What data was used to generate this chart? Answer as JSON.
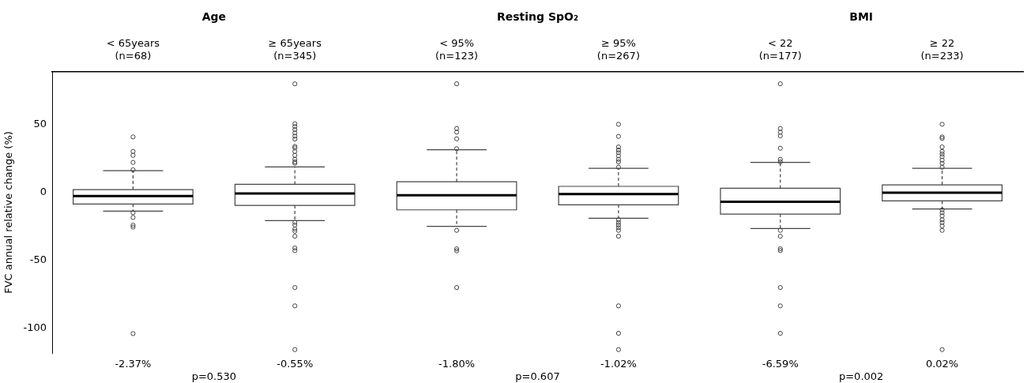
{
  "chart_data": {
    "type": "box",
    "categories": [
      "< 65years\n(n=68)",
      "≥ 65years\n(n=345)",
      "< 95%\n(n=123)",
      "≥ 95%\n(n=267)",
      "< 22\n(n=177)",
      "≥ 22\n(n=233)"
    ],
    "ylabel": "FVC annual relative change (%)",
    "ylim": [
      -118,
      89
    ],
    "yticks": [
      -100,
      -50,
      0,
      50
    ],
    "color": "#444444",
    "marker": "circle",
    "boxes": [
      {
        "low": -13.6,
        "q1": -8.3,
        "median": -2.37,
        "q3": 2.3,
        "high": 16.3,
        "outliers": [
          41.1,
          30.4,
          27.5,
          22.3,
          16.9,
          -14.7,
          -18.2,
          -23.9,
          -25.3,
          -103.7
        ]
      },
      {
        "low": -20.5,
        "q1": -9.3,
        "median": -0.55,
        "q3": 6.2,
        "high": 19.0,
        "outliers": [
          80.2,
          50.8,
          48.8,
          46.5,
          44,
          41.7,
          39.5,
          34.1,
          33,
          30.4,
          27.5,
          24.6,
          22.7,
          21.7,
          -21.9,
          -23.8,
          -26.7,
          -28.3,
          -32,
          -40.7,
          -42.6,
          -69.8,
          -83.3,
          -115.5
        ]
      },
      {
        "low": -24.8,
        "q1": -12.6,
        "median": -1.8,
        "q3": 8.1,
        "high": 31.6,
        "outliers": [
          80.2,
          47.3,
          44.6,
          39.7,
          32.4,
          -27.7,
          -41.3,
          -42.8,
          -69.8
        ]
      },
      {
        "low": -18.8,
        "q1": -8.9,
        "median": -1.02,
        "q3": 4.7,
        "high": 18.0,
        "outliers": [
          50.4,
          41.5,
          33.7,
          31.4,
          29.5,
          27.1,
          24.6,
          22.7,
          18.8,
          -19.9,
          -21.9,
          -23.8,
          -25.8,
          -27.7,
          -32,
          -83.3,
          -103.5,
          -115.5
        ]
      },
      {
        "low": -26.4,
        "q1": -15.7,
        "median": -6.59,
        "q3": 3.3,
        "high": 22.3,
        "outliers": [
          80.2,
          47.3,
          44.6,
          41.9,
          32.8,
          24.6,
          22.7,
          -27.7,
          -32,
          -41.3,
          -42.6,
          -69.8,
          -83.3,
          -103.5
        ]
      },
      {
        "low": -12.0,
        "q1": -6.0,
        "median": 0.02,
        "q3": 5.8,
        "high": 18.0,
        "outliers": [
          50.4,
          41.1,
          40,
          33.7,
          30.4,
          28.5,
          26.6,
          24,
          21.7,
          18.8,
          -12.6,
          -14.7,
          -17,
          -19.9,
          -21.9,
          -24.4,
          -27.7,
          -115.5
        ]
      }
    ],
    "value_labels": [
      "-2.37%",
      "-0.55%",
      "-1.80%",
      "-1.02%",
      "-6.59%",
      "0.02%"
    ],
    "annotations": [
      "Age",
      "Resting SpO₂",
      "BMI",
      "p=0.530",
      "p=0.607",
      "p=0.002"
    ]
  }
}
